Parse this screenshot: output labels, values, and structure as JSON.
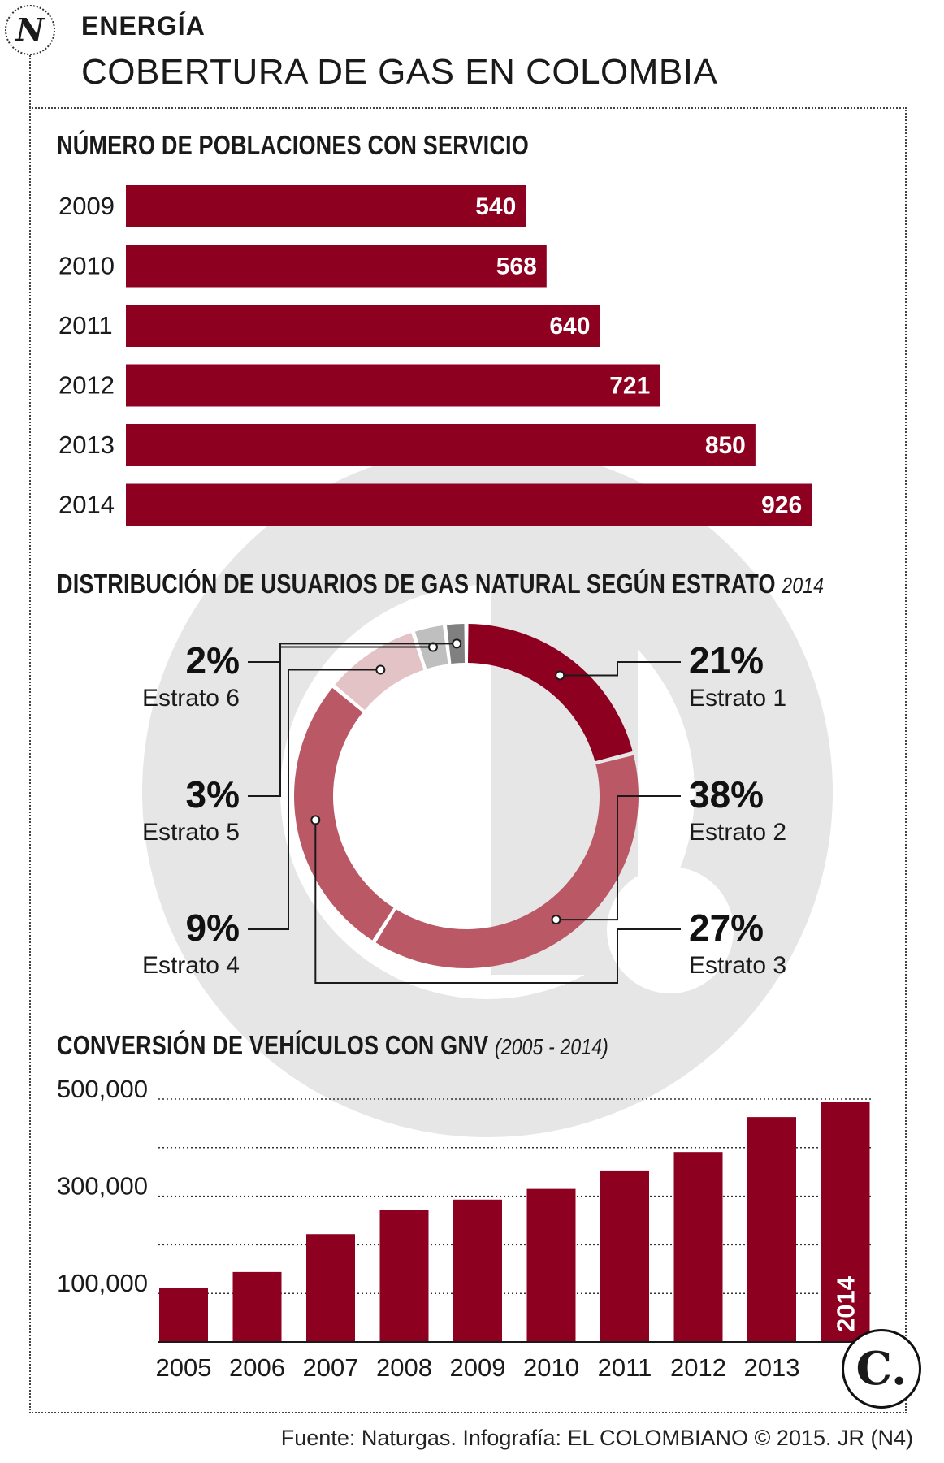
{
  "header": {
    "kicker": "ENERGÍA",
    "title": "COBERTURA DE GAS EN COLOMBIA",
    "logo_letter": "N"
  },
  "colors": {
    "bar": "#8d0020",
    "estrato1": "#8d0020",
    "estrato2": "#bb5866",
    "estrato3": "#bb5866",
    "estrato4": "#e3c3c6",
    "estrato5": "#bfbfbf",
    "estrato6": "#808080",
    "other": "#111111",
    "watermark": "#e6e6e6"
  },
  "sections": {
    "towns_title": "NÚMERO DE POBLACIONES CON SERVICIO",
    "users_title": "DISTRIBUCIÓN DE USUARIOS DE GAS NATURAL SEGÚN ESTRATO",
    "users_sub": "2014",
    "vehicles_title": "CONVERSIÓN DE VEHÍCULOS CON GNV",
    "vehicles_sub": "(2005 - 2014)"
  },
  "chart_data": [
    {
      "type": "bar",
      "orientation": "horizontal",
      "title": "NÚMERO DE POBLACIONES CON SERVICIO",
      "categories": [
        "2009",
        "2010",
        "2011",
        "2012",
        "2013",
        "2014"
      ],
      "values": [
        540,
        568,
        640,
        721,
        850,
        926
      ],
      "data_labels": [
        "540",
        "568",
        "640",
        "721",
        "850",
        "926"
      ]
    },
    {
      "type": "pie",
      "donut": true,
      "title": "DISTRIBUCIÓN DE USUARIOS DE GAS NATURAL SEGÚN ESTRATO",
      "subtitle": "2014",
      "slices": [
        {
          "name": "Estrato 1",
          "value": 21,
          "label": "21%"
        },
        {
          "name": "Estrato 2",
          "value": 38,
          "label": "38%"
        },
        {
          "name": "Estrato 3",
          "value": 27,
          "label": "27%"
        },
        {
          "name": "Estrato 4",
          "value": 9,
          "label": "9%"
        },
        {
          "name": "Estrato 5",
          "value": 3,
          "label": "3%"
        },
        {
          "name": "Estrato 6",
          "value": 2,
          "label": "2%"
        }
      ]
    },
    {
      "type": "bar",
      "orientation": "vertical",
      "title": "CONVERSIÓN DE VEHÍCULOS CON GNV",
      "subtitle": "(2005 - 2014)",
      "categories": [
        "2005",
        "2006",
        "2007",
        "2008",
        "2009",
        "2010",
        "2011",
        "2012",
        "2013",
        "2014"
      ],
      "values": [
        111000,
        144000,
        222000,
        271000,
        293000,
        315000,
        353000,
        391000,
        463000,
        494000
      ],
      "ylim": [
        0,
        500000
      ],
      "yticks": [
        100000,
        300000,
        500000
      ],
      "ytick_labels": [
        "100,000",
        "300,000",
        "500,000"
      ],
      "grid": true
    }
  ],
  "footer": {
    "source": "Fuente: Naturgas. Infografía: EL COLOMBIANO © 2015. JR (N4)",
    "brand_letter": "C."
  }
}
